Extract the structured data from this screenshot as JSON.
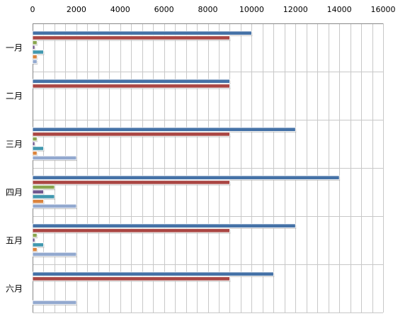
{
  "chart_data": {
    "type": "bar",
    "orientation": "horizontal",
    "categories": [
      "一月",
      "二月",
      "三月",
      "四月",
      "五月",
      "六月"
    ],
    "x_ticks": [
      "0",
      "2000",
      "4000",
      "6000",
      "8000",
      "10000",
      "12000",
      "14000",
      "16000"
    ],
    "xlim": [
      0,
      16000
    ],
    "x_axis_position": "top",
    "grid": true,
    "legend": "none",
    "series": [
      {
        "color": "#4572A7",
        "values": [
          10000,
          9000,
          12000,
          14000,
          12000,
          11000
        ]
      },
      {
        "color": "#AA4643",
        "values": [
          9000,
          9000,
          9000,
          9000,
          9000,
          9000
        ]
      },
      {
        "color": "#89A54E",
        "values": [
          200,
          0,
          200,
          1000,
          200,
          0
        ]
      },
      {
        "color": "#71588F",
        "values": [
          100,
          0,
          100,
          500,
          100,
          0
        ]
      },
      {
        "color": "#4198AF",
        "values": [
          500,
          0,
          500,
          1000,
          500,
          0
        ]
      },
      {
        "color": "#DB843D",
        "values": [
          200,
          0,
          200,
          500,
          200,
          0
        ]
      },
      {
        "color": "#93A9CF",
        "values": [
          200,
          0,
          2000,
          2000,
          2000,
          2000
        ]
      }
    ]
  }
}
